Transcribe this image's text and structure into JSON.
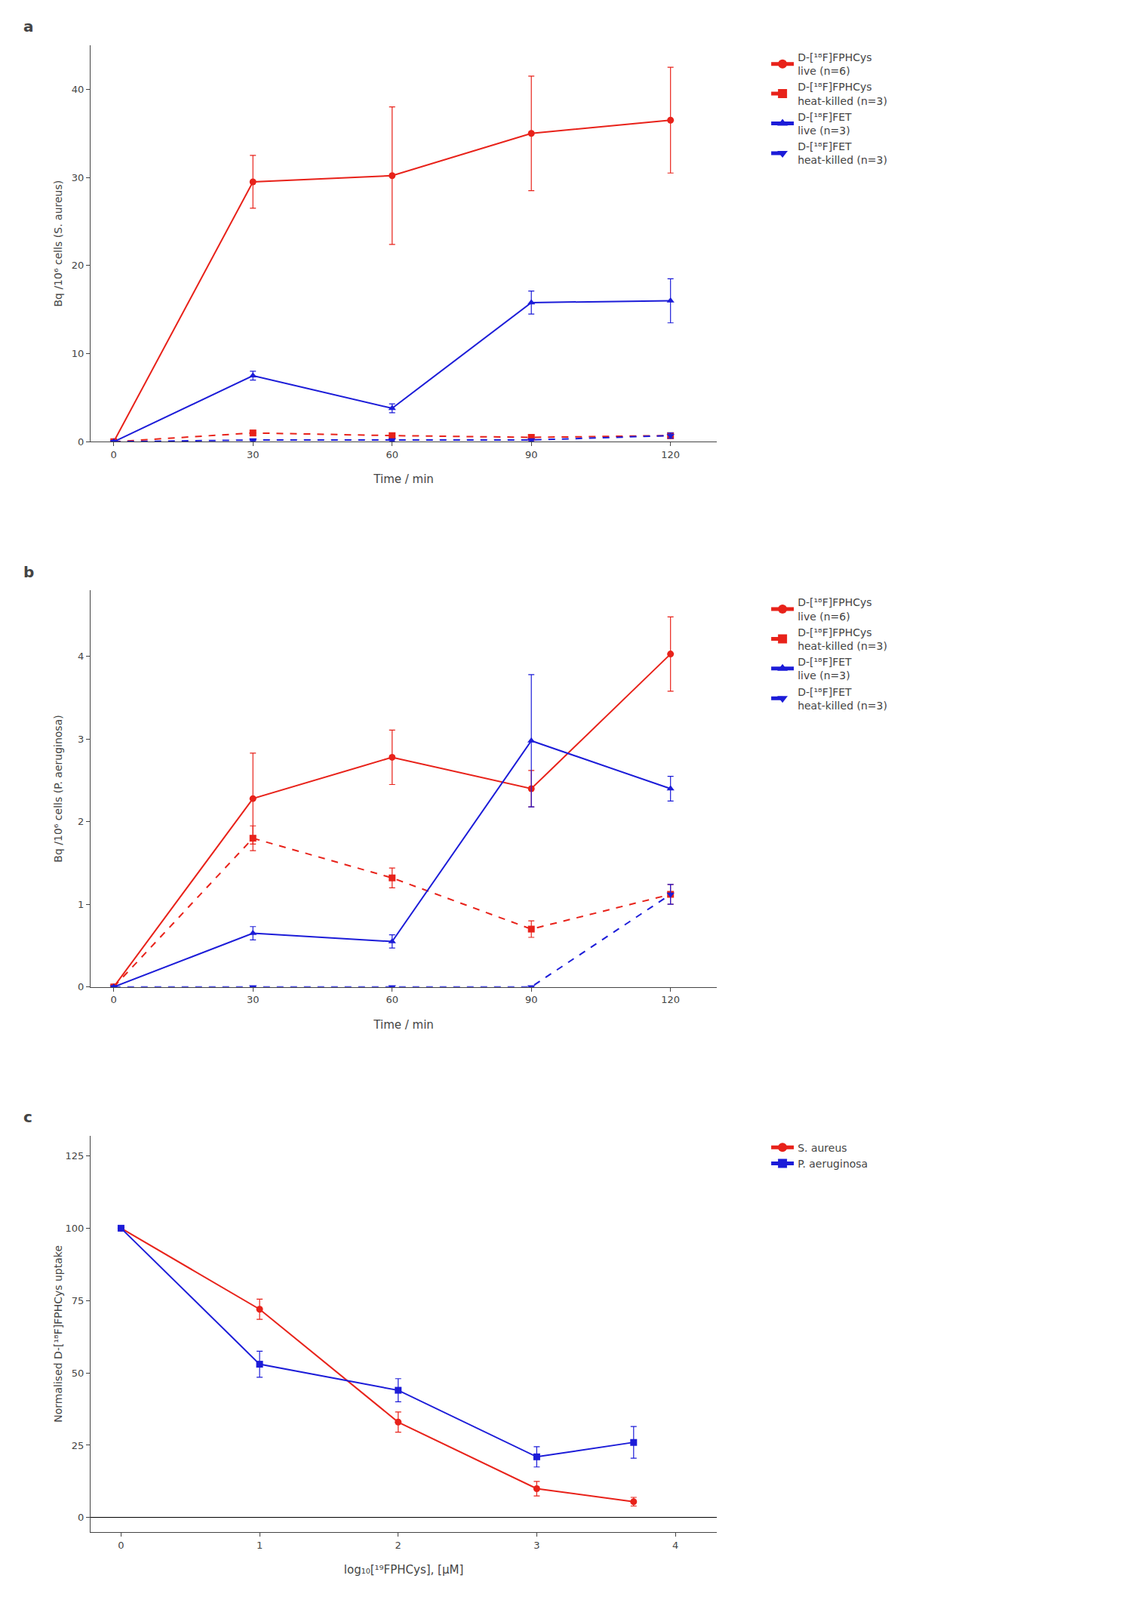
{
  "chart_data": [
    {
      "type": "line",
      "title": "a",
      "xlabel": "Time / min",
      "ylabel": "Bq /10⁶ cells (S. aureus)",
      "x": [
        0,
        30,
        60,
        90,
        120
      ],
      "series": [
        {
          "name": "D-[¹⁸F]FPHCys\nlive (n=6)",
          "color": "#e8221a",
          "marker": "circle",
          "line_style": "solid",
          "values": [
            0.0,
            29.5,
            30.2,
            35.0,
            36.5
          ],
          "errors": [
            0.0,
            3.0,
            7.8,
            6.5,
            6.0
          ]
        },
        {
          "name": "D-[¹⁸F]FPHCys\nheat-killed (n=3)",
          "color": "#e8221a",
          "marker": "square",
          "line_style": "dashed",
          "values": [
            0.0,
            1.0,
            0.7,
            0.5,
            0.7
          ],
          "errors": [
            0.0,
            0.3,
            0.3,
            0.2,
            0.3
          ]
        },
        {
          "name": "D-[¹⁸F]FET\nlive (n=3)",
          "color": "#1c1cd8",
          "marker": "triangle-up",
          "line_style": "solid",
          "values": [
            0.0,
            7.5,
            3.8,
            15.8,
            16.0
          ],
          "errors": [
            0.0,
            0.5,
            0.5,
            1.3,
            2.5
          ]
        },
        {
          "name": "D-[¹⁸F]FET\nheat-killed (n=3)",
          "color": "#1c1cd8",
          "marker": "triangle-down",
          "line_style": "dashed",
          "values": [
            0.0,
            0.2,
            0.2,
            0.2,
            0.7
          ],
          "errors": [
            0.0,
            0.1,
            0.1,
            0.1,
            0.3
          ]
        }
      ],
      "xlim": [
        -5,
        130
      ],
      "xticks": [
        0,
        30,
        60,
        90,
        120
      ],
      "ylim": [
        0,
        45
      ],
      "yticks": [
        0,
        10,
        20,
        30,
        40
      ],
      "grid": false
    },
    {
      "type": "line",
      "title": "b",
      "xlabel": "Time / min",
      "ylabel": "Bq /10⁶ cells (P. aeruginosa)",
      "x": [
        0,
        30,
        60,
        90,
        120
      ],
      "series": [
        {
          "name": "D-[¹⁸F]FPHCys\nlive (n=6)",
          "color": "#e8221a",
          "marker": "circle",
          "line_style": "solid",
          "values": [
            0.0,
            2.28,
            2.78,
            2.4,
            4.03
          ],
          "errors": [
            0.0,
            0.55,
            0.33,
            0.22,
            0.45
          ]
        },
        {
          "name": "D-[¹⁸F]FPHCys\nheat-killed (n=3)",
          "color": "#e8221a",
          "marker": "square",
          "line_style": "dashed",
          "values": [
            0.0,
            1.8,
            1.32,
            0.7,
            1.12
          ],
          "errors": [
            0.0,
            0.15,
            0.12,
            0.1,
            0.12
          ]
        },
        {
          "name": "D-[¹⁸F]FET\nlive (n=3)",
          "color": "#1c1cd8",
          "marker": "triangle-up",
          "line_style": "solid",
          "values": [
            0.0,
            0.65,
            0.55,
            2.98,
            2.4
          ],
          "errors": [
            0.0,
            0.08,
            0.08,
            0.8,
            0.15
          ]
        },
        {
          "name": "D-[¹⁸F]FET\nheat-killed (n=3)",
          "color": "#1c1cd8",
          "marker": "triangle-down",
          "line_style": "dashed",
          "values": [
            0.0,
            0.0,
            0.0,
            0.0,
            1.12
          ],
          "errors": [
            0.0,
            0.0,
            0.0,
            0.0,
            0.12
          ]
        }
      ],
      "xlim": [
        -5,
        130
      ],
      "xticks": [
        0,
        30,
        60,
        90,
        120
      ],
      "ylim": [
        0,
        4.8
      ],
      "yticks": [
        0,
        1,
        2,
        3,
        4
      ],
      "grid": false
    },
    {
      "type": "line",
      "title": "c",
      "xlabel": "log₁₀[¹⁹FPHCys], [μM]",
      "ylabel": "Normalised D-[¹⁸F]FPHCys uptake",
      "x": [
        0,
        1,
        2,
        3,
        3.699
      ],
      "series": [
        {
          "name": "S. aureus",
          "color": "#e8221a",
          "marker": "circle",
          "line_style": "solid",
          "values": [
            100.0,
            72.0,
            33.0,
            10.0,
            5.5
          ],
          "errors": [
            0.0,
            3.5,
            3.5,
            2.5,
            1.5
          ]
        },
        {
          "name": "P. aeruginosa",
          "color": "#1c1cd8",
          "marker": "square",
          "line_style": "solid",
          "values": [
            100.0,
            53.0,
            44.0,
            21.0,
            26.0
          ],
          "errors": [
            0.0,
            4.5,
            4.0,
            3.5,
            5.5
          ]
        }
      ],
      "xlim": [
        -0.22,
        4.3
      ],
      "xticks": [
        0,
        1,
        2,
        3,
        4
      ],
      "ylim": [
        -5,
        132
      ],
      "yticks": [
        0,
        25,
        50,
        75,
        100,
        125
      ],
      "grid": false
    }
  ]
}
